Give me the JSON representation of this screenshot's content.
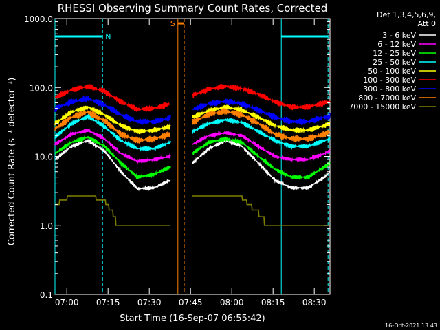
{
  "chart_data": {
    "type": "line",
    "title": "RHESSI Observing Summary Count Rates, Corrected",
    "xlabel": "Start Time (16-Sep-07 06:55:42)",
    "ylabel": "Corrected Count Rate (s⁻¹ detector⁻¹)",
    "yscale": "log",
    "ylim": [
      0.1,
      1000
    ],
    "xlim_minutes": [
      0,
      100
    ],
    "x_start_time": "06:55:42",
    "x_ticks": [
      {
        "label": "07:00",
        "minute": 4.3
      },
      {
        "label": "07:15",
        "minute": 19.3
      },
      {
        "label": "07:30",
        "minute": 34.3
      },
      {
        "label": "07:45",
        "minute": 49.3
      },
      {
        "label": "08:00",
        "minute": 64.3
      },
      {
        "label": "08:15",
        "minute": 79.3
      },
      {
        "label": "08:30",
        "minute": 94.3
      }
    ],
    "y_ticks": [
      {
        "label": "0.1",
        "value": 0.1
      },
      {
        "label": "1.0",
        "value": 1
      },
      {
        "label": "10.0",
        "value": 10
      },
      {
        "label": "100.0",
        "value": 100
      },
      {
        "label": "1000.0",
        "value": 1000
      }
    ],
    "legend_header": [
      "Det 1,3,4,5,6,9,",
      "Att 0"
    ],
    "footer_date": "16-Oct-2021 13:43",
    "series": [
      {
        "name": "3 - 6 keV",
        "color": "#ffffff",
        "x": [
          0,
          6,
          12,
          18,
          24,
          30,
          36,
          42,
          44,
          50,
          56,
          62,
          68,
          74,
          80,
          86,
          92,
          98,
          100
        ],
        "values": [
          9,
          14,
          17,
          12,
          6,
          3.4,
          3.5,
          4.5,
          null,
          8,
          13,
          17,
          14,
          8,
          4.5,
          3.5,
          3.5,
          5,
          6
        ]
      },
      {
        "name": "6 - 12 keV",
        "color": "#ff00ff",
        "x": [
          0,
          6,
          12,
          18,
          24,
          30,
          36,
          42,
          44,
          50,
          56,
          62,
          68,
          74,
          80,
          86,
          92,
          98,
          100
        ],
        "values": [
          15,
          21,
          24,
          18,
          11,
          8.5,
          9,
          10,
          null,
          15,
          20,
          22,
          20,
          14,
          10,
          9,
          9,
          11,
          12
        ]
      },
      {
        "name": "12 - 25 keV",
        "color": "#00ff00",
        "x": [
          0,
          6,
          12,
          18,
          24,
          30,
          36,
          42,
          44,
          50,
          56,
          62,
          68,
          74,
          80,
          86,
          92,
          98,
          100
        ],
        "values": [
          11,
          16,
          19,
          14,
          8,
          5,
          5.5,
          7,
          null,
          11,
          16,
          18,
          16,
          10,
          6.5,
          5,
          5,
          7,
          8
        ]
      },
      {
        "name": "25 - 50 keV",
        "color": "#00ffff",
        "x": [
          0,
          6,
          12,
          18,
          24,
          30,
          36,
          42,
          44,
          50,
          56,
          62,
          68,
          74,
          80,
          86,
          92,
          98,
          100
        ],
        "values": [
          19,
          30,
          38,
          27,
          17,
          13,
          13,
          16,
          null,
          23,
          30,
          34,
          31,
          23,
          17,
          14,
          14,
          17,
          18
        ]
      },
      {
        "name": "50 - 100 keV",
        "color": "#ffff00",
        "x": [
          0,
          6,
          12,
          18,
          24,
          30,
          36,
          42,
          44,
          50,
          56,
          62,
          68,
          74,
          80,
          86,
          92,
          98,
          100
        ],
        "values": [
          30,
          44,
          52,
          40,
          28,
          23,
          24,
          27,
          null,
          37,
          46,
          52,
          47,
          37,
          28,
          24,
          24,
          28,
          30
        ]
      },
      {
        "name": "100 - 300 keV",
        "color": "#ff0000",
        "x": [
          0,
          6,
          12,
          18,
          24,
          30,
          36,
          42,
          44,
          50,
          56,
          62,
          68,
          74,
          80,
          86,
          92,
          98,
          100
        ],
        "values": [
          72,
          92,
          104,
          88,
          62,
          48,
          50,
          58,
          null,
          77,
          95,
          104,
          96,
          80,
          62,
          52,
          52,
          60,
          63
        ]
      },
      {
        "name": "300 - 800 keV",
        "color": "#0000ff",
        "x": [
          0,
          6,
          12,
          18,
          24,
          30,
          36,
          42,
          44,
          50,
          56,
          62,
          68,
          74,
          80,
          86,
          92,
          98,
          100
        ],
        "values": [
          49,
          62,
          69,
          56,
          40,
          32,
          32,
          36,
          null,
          48,
          58,
          63,
          58,
          47,
          37,
          32,
          32,
          37,
          38
        ]
      },
      {
        "name": "800 - 7000 keV",
        "color": "#ff8000",
        "x": [
          0,
          6,
          12,
          18,
          24,
          30,
          36,
          42,
          44,
          50,
          56,
          62,
          68,
          74,
          80,
          86,
          92,
          98,
          100
        ],
        "values": [
          25,
          37,
          44,
          33,
          21,
          17,
          18,
          21,
          null,
          31,
          41,
          45,
          40,
          30,
          21,
          18,
          18,
          21,
          23
        ]
      },
      {
        "name": "7000 - 15000 keV",
        "color": "#808000",
        "x": [
          0,
          6,
          12,
          18,
          24,
          30,
          36,
          42,
          44,
          50,
          56,
          62,
          68,
          74,
          80,
          86,
          92,
          98,
          100
        ],
        "values": [
          2,
          2.7,
          2.7,
          2.3,
          1,
          1,
          1,
          1,
          null,
          2.5,
          2.7,
          2.7,
          2.5,
          1.5,
          1,
          1,
          1,
          1,
          1
        ]
      }
    ],
    "annotations": [
      {
        "label": "N",
        "color": "#00ffff",
        "start": 0,
        "end": 17.3,
        "level": 550
      },
      {
        "label": "",
        "color": "#00ffff",
        "start": 82.3,
        "end": 99.3,
        "level": 550
      },
      {
        "label": "S",
        "color": "#ff8000",
        "start": 44.7,
        "end": 47,
        "level": 850
      }
    ],
    "vlines": [
      {
        "minute": 0,
        "color": "#00ffff",
        "style": "solid"
      },
      {
        "minute": 17.3,
        "color": "#00ffff",
        "style": "dashed"
      },
      {
        "minute": 44.7,
        "color": "#ff8000",
        "style": "solid"
      },
      {
        "minute": 47,
        "color": "#ff8000",
        "style": "dashed"
      },
      {
        "minute": 82.3,
        "color": "#00ffff",
        "style": "solid"
      },
      {
        "minute": 99.3,
        "color": "#00ffff",
        "style": "dashed"
      }
    ]
  }
}
